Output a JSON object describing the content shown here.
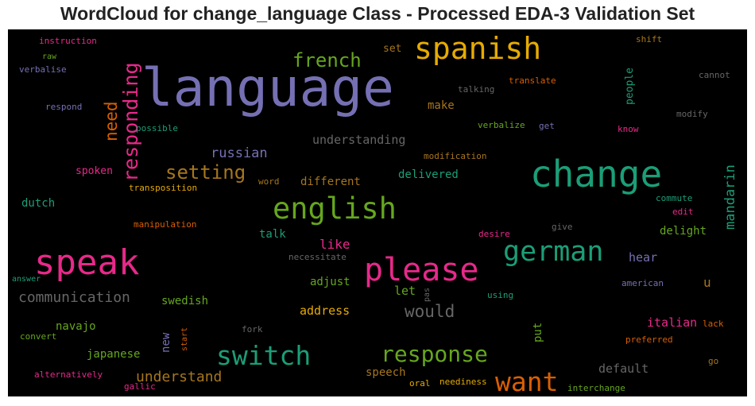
{
  "chart_data": {
    "type": "wordcloud",
    "title": "WordCloud for change_language Class - Processed EDA-3 Validation Set",
    "background": "#000000",
    "colormap": "Dark2",
    "palette": [
      "#1b9e77",
      "#d95f02",
      "#7570b3",
      "#e7298a",
      "#66a61e",
      "#e6ab02",
      "#a6761d",
      "#666666"
    ],
    "words": [
      {
        "text": "language",
        "size": 66,
        "color": "#7570b3"
      },
      {
        "text": "change",
        "size": 46,
        "color": "#1b9e77"
      },
      {
        "text": "speak",
        "size": 44,
        "color": "#e7298a"
      },
      {
        "text": "please",
        "size": 40,
        "color": "#e7298a"
      },
      {
        "text": "spanish",
        "size": 38,
        "color": "#e6ab02"
      },
      {
        "text": "english",
        "size": 37,
        "color": "#66a61e"
      },
      {
        "text": "switch",
        "size": 33,
        "color": "#1b9e77"
      },
      {
        "text": "want",
        "size": 33,
        "color": "#d95f02"
      },
      {
        "text": "german",
        "size": 35,
        "color": "#1b9e77"
      },
      {
        "text": "response",
        "size": 28,
        "color": "#66a61e"
      },
      {
        "text": "responding",
        "size": 25,
        "color": "#e7298a"
      },
      {
        "text": "setting",
        "size": 24,
        "color": "#a6761d"
      },
      {
        "text": "french",
        "size": 24,
        "color": "#66a61e"
      },
      {
        "text": "need",
        "size": 21,
        "color": "#d95f02"
      },
      {
        "text": "would",
        "size": 21,
        "color": "#666666"
      },
      {
        "text": "communication",
        "size": 18,
        "color": "#666666"
      },
      {
        "text": "understand",
        "size": 18,
        "color": "#a6761d"
      },
      {
        "text": "mandarin",
        "size": 17,
        "color": "#1b9e77"
      },
      {
        "text": "russian",
        "size": 17,
        "color": "#7570b3"
      },
      {
        "text": "like",
        "size": 16,
        "color": "#e7298a"
      },
      {
        "text": "understanding",
        "size": 15,
        "color": "#666666"
      },
      {
        "text": "address",
        "size": 15,
        "color": "#e6ab02"
      },
      {
        "text": "italian",
        "size": 15,
        "color": "#e7298a"
      },
      {
        "text": "hear",
        "size": 15,
        "color": "#7570b3"
      },
      {
        "text": "default",
        "size": 15,
        "color": "#666666"
      },
      {
        "text": "let",
        "size": 15,
        "color": "#66a61e"
      },
      {
        "text": "u",
        "size": 16,
        "color": "#a6761d"
      },
      {
        "text": "make",
        "size": 14,
        "color": "#a6761d"
      },
      {
        "text": "dutch",
        "size": 14,
        "color": "#1b9e77"
      },
      {
        "text": "different",
        "size": 14,
        "color": "#a6761d"
      },
      {
        "text": "delivered",
        "size": 14,
        "color": "#1b9e77"
      },
      {
        "text": "talk",
        "size": 14,
        "color": "#1b9e77"
      },
      {
        "text": "delight",
        "size": 14,
        "color": "#66a61e"
      },
      {
        "text": "adjust",
        "size": 14,
        "color": "#66a61e"
      },
      {
        "text": "swedish",
        "size": 14,
        "color": "#66a61e"
      },
      {
        "text": "navajo",
        "size": 14,
        "color": "#66a61e"
      },
      {
        "text": "japanese",
        "size": 14,
        "color": "#66a61e"
      },
      {
        "text": "new",
        "size": 14,
        "color": "#7570b3"
      },
      {
        "text": "put",
        "size": 14,
        "color": "#66a61e"
      },
      {
        "text": "speech",
        "size": 14,
        "color": "#a6761d"
      },
      {
        "text": "spoken",
        "size": 13,
        "color": "#e7298a"
      },
      {
        "text": "people",
        "size": 13,
        "color": "#1b9e77"
      },
      {
        "text": "set",
        "size": 13,
        "color": "#a6761d"
      },
      {
        "text": "instruction",
        "size": 11,
        "color": "#e7298a"
      },
      {
        "text": "raw",
        "size": 10,
        "color": "#66a61e"
      },
      {
        "text": "verbalise",
        "size": 11,
        "color": "#7570b3"
      },
      {
        "text": "respond",
        "size": 11,
        "color": "#7570b3"
      },
      {
        "text": "possible",
        "size": 11,
        "color": "#1b9e77"
      },
      {
        "text": "transposition",
        "size": 11,
        "color": "#e6ab02"
      },
      {
        "text": "manipulation",
        "size": 11,
        "color": "#d95f02"
      },
      {
        "text": "word",
        "size": 11,
        "color": "#a6761d"
      },
      {
        "text": "answer",
        "size": 10,
        "color": "#1b9e77"
      },
      {
        "text": "necessitate",
        "size": 11,
        "color": "#666666"
      },
      {
        "text": "convert",
        "size": 11,
        "color": "#66a61e"
      },
      {
        "text": "alternatively",
        "size": 11,
        "color": "#e7298a"
      },
      {
        "text": "gallic",
        "size": 11,
        "color": "#e7298a"
      },
      {
        "text": "start",
        "size": 10,
        "color": "#d95f02"
      },
      {
        "text": "fork",
        "size": 11,
        "color": "#666666"
      },
      {
        "text": "pas",
        "size": 10,
        "color": "#666666"
      },
      {
        "text": "using",
        "size": 11,
        "color": "#1b9e77"
      },
      {
        "text": "oral",
        "size": 11,
        "color": "#e6ab02"
      },
      {
        "text": "neediness",
        "size": 11,
        "color": "#e6ab02"
      },
      {
        "text": "interchange",
        "size": 11,
        "color": "#66a61e"
      },
      {
        "text": "talking",
        "size": 11,
        "color": "#666666"
      },
      {
        "text": "translate",
        "size": 11,
        "color": "#d95f02"
      },
      {
        "text": "verbalize",
        "size": 11,
        "color": "#66a61e"
      },
      {
        "text": "get",
        "size": 11,
        "color": "#7570b3"
      },
      {
        "text": "modification",
        "size": 11,
        "color": "#a6761d"
      },
      {
        "text": "shift",
        "size": 11,
        "color": "#a6761d"
      },
      {
        "text": "cannot",
        "size": 11,
        "color": "#666666"
      },
      {
        "text": "modify",
        "size": 11,
        "color": "#666666"
      },
      {
        "text": "know",
        "size": 11,
        "color": "#e7298a"
      },
      {
        "text": "commute",
        "size": 11,
        "color": "#1b9e77"
      },
      {
        "text": "edit",
        "size": 11,
        "color": "#e7298a"
      },
      {
        "text": "give",
        "size": 11,
        "color": "#666666"
      },
      {
        "text": "desire",
        "size": 11,
        "color": "#e7298a"
      },
      {
        "text": "american",
        "size": 11,
        "color": "#7570b3"
      },
      {
        "text": "lack",
        "size": 11,
        "color": "#d95f02"
      },
      {
        "text": "preferred",
        "size": 11,
        "color": "#d95f02"
      },
      {
        "text": "go",
        "size": 11,
        "color": "#a6761d"
      }
    ]
  }
}
